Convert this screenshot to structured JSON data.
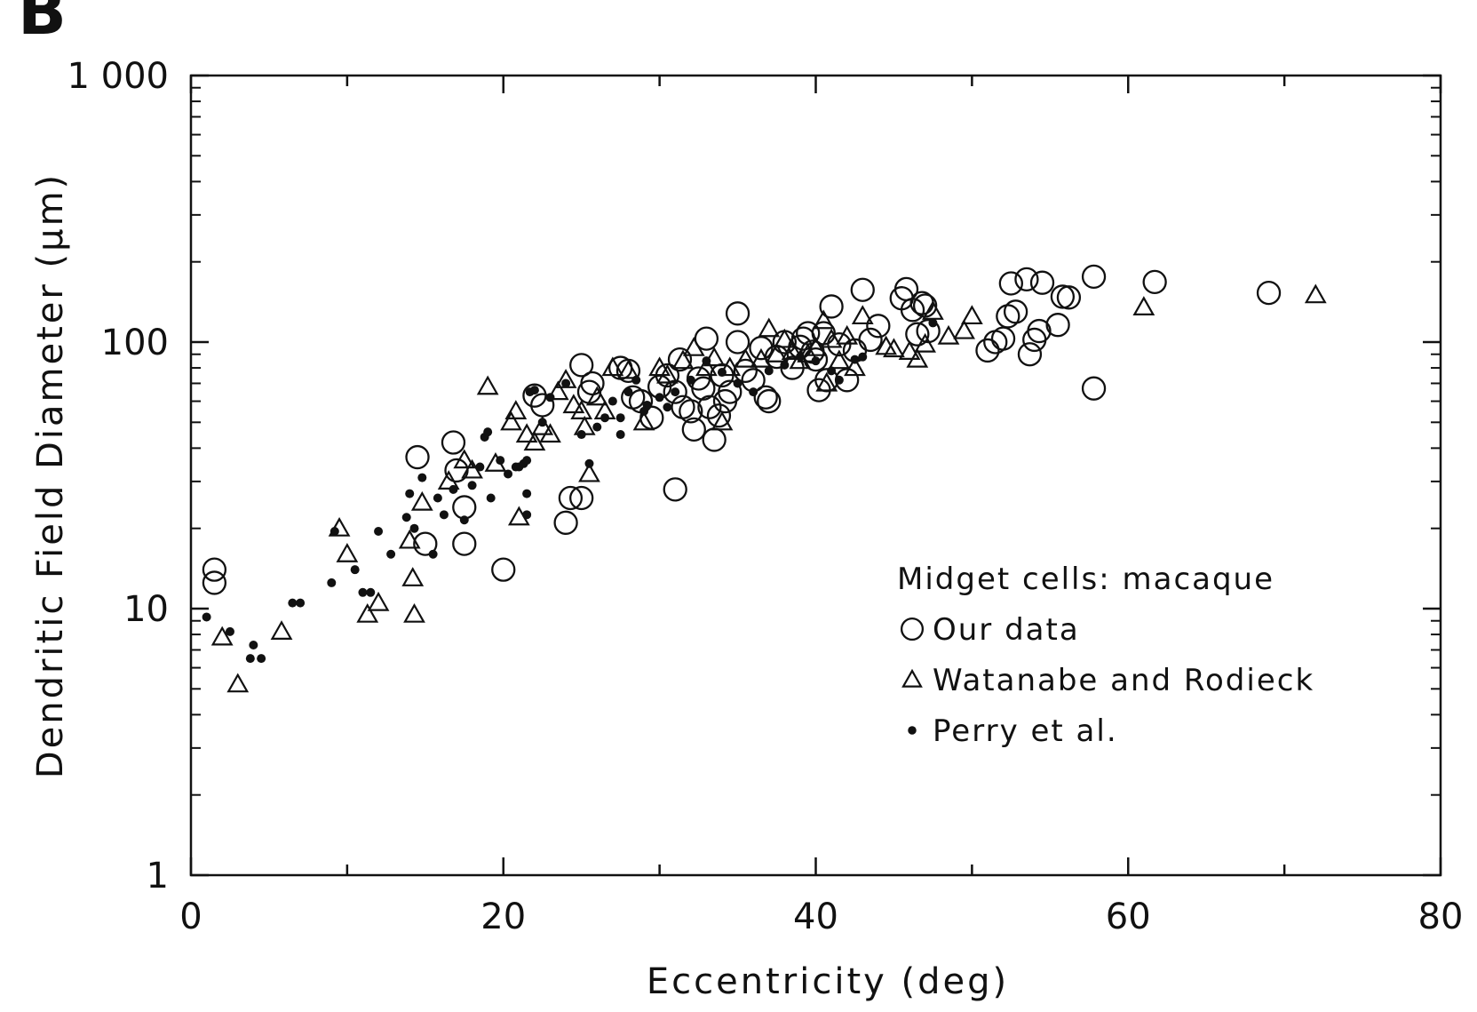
{
  "panel_label": "B",
  "chart_data": {
    "type": "scatter",
    "title": "",
    "xlabel": "Eccentricity (deg)",
    "ylabel": "Dendritic Field Diameter (µm)",
    "xlim": [
      0,
      80
    ],
    "ylim": [
      1,
      1000
    ],
    "yscale": "log",
    "x_ticks": [
      0,
      20,
      40,
      60,
      80
    ],
    "y_ticks": [
      1,
      10,
      100,
      1000
    ],
    "x_tick_labels": [
      "0",
      "20",
      "40",
      "60",
      "80"
    ],
    "y_tick_labels": [
      "1",
      "10",
      "100",
      "1 000"
    ],
    "grid": false,
    "legend_title": "Midget cells: macaque",
    "legend_position": "bottom-right",
    "series": [
      {
        "name": "Our data",
        "marker": "open-circle",
        "points": [
          [
            1.5,
            14
          ],
          [
            1.5,
            12.5
          ],
          [
            14.5,
            37
          ],
          [
            15,
            17.5
          ],
          [
            16.8,
            42
          ],
          [
            17,
            33
          ],
          [
            17.5,
            24
          ],
          [
            17.5,
            17.5
          ],
          [
            20,
            14
          ],
          [
            22,
            63
          ],
          [
            22.5,
            58
          ],
          [
            24,
            21
          ],
          [
            24.3,
            26
          ],
          [
            25,
            26
          ],
          [
            25,
            82
          ],
          [
            25.5,
            65
          ],
          [
            25.7,
            70
          ],
          [
            27.5,
            80
          ],
          [
            28,
            78
          ],
          [
            28.3,
            62
          ],
          [
            28.8,
            60
          ],
          [
            29.5,
            52
          ],
          [
            30,
            68
          ],
          [
            30.5,
            75
          ],
          [
            31,
            65
          ],
          [
            31.3,
            86
          ],
          [
            31.5,
            57
          ],
          [
            31,
            28
          ],
          [
            32,
            55
          ],
          [
            32.2,
            47
          ],
          [
            32.5,
            73
          ],
          [
            32.8,
            67
          ],
          [
            33,
            103
          ],
          [
            33.2,
            57
          ],
          [
            33.5,
            43
          ],
          [
            33.8,
            53
          ],
          [
            34,
            75
          ],
          [
            34.2,
            60
          ],
          [
            34.5,
            65
          ],
          [
            35,
            128
          ],
          [
            35,
            100
          ],
          [
            35.5,
            78
          ],
          [
            36,
            72
          ],
          [
            36.5,
            95
          ],
          [
            36.8,
            62
          ],
          [
            37,
            60
          ],
          [
            37.5,
            88
          ],
          [
            38,
            100
          ],
          [
            38.5,
            80
          ],
          [
            39,
            96
          ],
          [
            39.2,
            103
          ],
          [
            39.5,
            108
          ],
          [
            39.8,
            92
          ],
          [
            40,
            86
          ],
          [
            40.2,
            66
          ],
          [
            40.5,
            108
          ],
          [
            40.7,
            72
          ],
          [
            41,
            136
          ],
          [
            41.5,
            98
          ],
          [
            42,
            72
          ],
          [
            42.5,
            93
          ],
          [
            43,
            157
          ],
          [
            43.5,
            102
          ],
          [
            44,
            115
          ],
          [
            45.5,
            146
          ],
          [
            45.8,
            158
          ],
          [
            46.2,
            132
          ],
          [
            46.5,
            107
          ],
          [
            46.8,
            140
          ],
          [
            47,
            137
          ],
          [
            47.2,
            110
          ],
          [
            51,
            93
          ],
          [
            51.5,
            100
          ],
          [
            52,
            103
          ],
          [
            52.3,
            125
          ],
          [
            52.5,
            166
          ],
          [
            52.8,
            130
          ],
          [
            53.5,
            172
          ],
          [
            53.7,
            90
          ],
          [
            54,
            102
          ],
          [
            54.3,
            110
          ],
          [
            54.5,
            167
          ],
          [
            55.5,
            116
          ],
          [
            55.8,
            148
          ],
          [
            56.2,
            147
          ],
          [
            57.8,
            176
          ],
          [
            57.8,
            67
          ],
          [
            61.7,
            168
          ],
          [
            69,
            153
          ]
        ]
      },
      {
        "name": "Watanabe and Rodieck",
        "marker": "open-triangle",
        "points": [
          [
            2,
            7.8
          ],
          [
            3,
            5.2
          ],
          [
            5.8,
            8.2
          ],
          [
            9.5,
            20
          ],
          [
            10,
            16
          ],
          [
            11.3,
            9.5
          ],
          [
            12,
            10.5
          ],
          [
            14,
            18
          ],
          [
            14.2,
            13
          ],
          [
            14.3,
            9.5
          ],
          [
            14.8,
            25
          ],
          [
            16.5,
            30
          ],
          [
            17.5,
            36
          ],
          [
            18,
            33
          ],
          [
            19,
            68
          ],
          [
            19.5,
            35
          ],
          [
            20.5,
            50
          ],
          [
            20.8,
            55
          ],
          [
            21,
            22
          ],
          [
            21.5,
            45
          ],
          [
            22,
            42
          ],
          [
            22.5,
            48
          ],
          [
            23,
            45
          ],
          [
            23.5,
            65
          ],
          [
            24,
            72
          ],
          [
            24.5,
            58
          ],
          [
            25,
            55
          ],
          [
            25.2,
            48
          ],
          [
            25.5,
            32
          ],
          [
            26,
            62
          ],
          [
            26.5,
            55
          ],
          [
            27,
            80
          ],
          [
            28,
            78
          ],
          [
            29,
            50
          ],
          [
            30,
            80
          ],
          [
            30.5,
            75
          ],
          [
            31.5,
            85
          ],
          [
            32.2,
            95
          ],
          [
            33,
            80
          ],
          [
            33.5,
            87
          ],
          [
            34,
            50
          ],
          [
            34.5,
            80
          ],
          [
            35.5,
            86
          ],
          [
            36.5,
            86
          ],
          [
            37,
            112
          ],
          [
            37.5,
            90
          ],
          [
            38,
            102
          ],
          [
            38.5,
            92
          ],
          [
            39,
            85
          ],
          [
            39.5,
            90
          ],
          [
            40,
            95
          ],
          [
            40.5,
            120
          ],
          [
            40.7,
            70
          ],
          [
            41,
            102
          ],
          [
            41.5,
            85
          ],
          [
            42,
            105
          ],
          [
            42.5,
            80
          ],
          [
            43,
            125
          ],
          [
            44.5,
            96
          ],
          [
            45,
            94
          ],
          [
            46,
            92
          ],
          [
            46.5,
            86
          ],
          [
            47,
            98
          ],
          [
            47.5,
            130
          ],
          [
            48.5,
            105
          ],
          [
            49.5,
            110
          ],
          [
            50,
            125
          ],
          [
            61,
            135
          ],
          [
            72,
            150
          ]
        ]
      },
      {
        "name": "Perry et al.",
        "marker": "filled-dot",
        "points": [
          [
            1,
            9.3
          ],
          [
            2.5,
            8.2
          ],
          [
            3.8,
            6.5
          ],
          [
            4,
            7.3
          ],
          [
            4.5,
            6.5
          ],
          [
            6.5,
            10.5
          ],
          [
            7,
            10.5
          ],
          [
            9,
            12.5
          ],
          [
            9.2,
            19.5
          ],
          [
            10.5,
            14
          ],
          [
            11,
            11.5
          ],
          [
            11.5,
            11.5
          ],
          [
            12,
            19.5
          ],
          [
            12.8,
            16
          ],
          [
            13.8,
            22
          ],
          [
            14,
            27
          ],
          [
            14.3,
            20
          ],
          [
            14.8,
            31
          ],
          [
            15.5,
            16
          ],
          [
            15.8,
            26
          ],
          [
            16.2,
            22.5
          ],
          [
            16.8,
            28
          ],
          [
            17.5,
            21.5
          ],
          [
            18,
            29
          ],
          [
            18.5,
            34
          ],
          [
            18.8,
            44
          ],
          [
            19,
            46
          ],
          [
            19.2,
            26
          ],
          [
            19.8,
            36
          ],
          [
            20.3,
            32
          ],
          [
            20.8,
            34
          ],
          [
            21,
            34
          ],
          [
            21.3,
            35
          ],
          [
            21.5,
            36
          ],
          [
            21.5,
            27
          ],
          [
            21.5,
            22.5
          ],
          [
            21.7,
            65
          ],
          [
            22,
            66
          ],
          [
            22.5,
            50
          ],
          [
            23,
            62
          ],
          [
            24,
            70
          ],
          [
            25,
            45
          ],
          [
            25.5,
            35
          ],
          [
            26,
            48
          ],
          [
            26.5,
            52
          ],
          [
            27,
            60
          ],
          [
            27.5,
            45
          ],
          [
            27.5,
            52
          ],
          [
            28,
            65
          ],
          [
            28.5,
            72
          ],
          [
            29,
            55
          ],
          [
            29.2,
            58
          ],
          [
            30,
            62
          ],
          [
            30.5,
            57
          ],
          [
            31,
            65
          ],
          [
            32,
            72
          ],
          [
            33,
            85
          ],
          [
            34,
            77
          ],
          [
            35,
            70
          ],
          [
            36,
            65
          ],
          [
            37,
            78
          ],
          [
            38,
            82
          ],
          [
            39,
            88
          ],
          [
            40,
            85
          ],
          [
            41,
            78
          ],
          [
            41.5,
            72
          ],
          [
            42.5,
            86
          ],
          [
            43,
            88
          ],
          [
            47.5,
            118
          ]
        ]
      }
    ]
  }
}
